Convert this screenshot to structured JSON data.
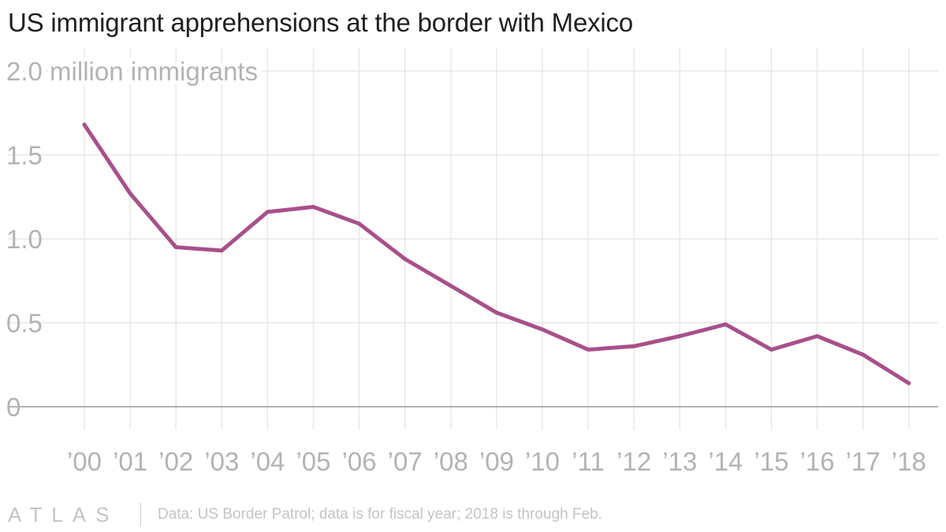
{
  "title": "US immigrant apprehensions at the border with Mexico",
  "footer": {
    "logo": "ATLAS",
    "source": "Data: US Border Patrol; data is for fiscal year; 2018 is through Feb."
  },
  "colors": {
    "line": "#a8508a",
    "grid": "#e8e8e8",
    "axis": "#999999",
    "tick_text": "#b3b3b3"
  },
  "chart_data": {
    "type": "line",
    "title": "US immigrant apprehensions at the border with Mexico",
    "ylabel": "million immigrants",
    "ylim": [
      0,
      2.0
    ],
    "y_ticks": [
      {
        "value": 0,
        "label": "0"
      },
      {
        "value": 0.5,
        "label": "0.5"
      },
      {
        "value": 1.0,
        "label": "1.0"
      },
      {
        "value": 1.5,
        "label": "1.5"
      },
      {
        "value": 2.0,
        "label": "2.0 million immigrants"
      }
    ],
    "categories": [
      "’00",
      "’01",
      "’02",
      "’03",
      "’04",
      "’05",
      "’06",
      "’07",
      "’08",
      "’09",
      "’10",
      "’11",
      "’12",
      "’13",
      "’14",
      "’15",
      "’16",
      "’17",
      "’18"
    ],
    "series": [
      {
        "name": "Apprehensions",
        "values": [
          1.68,
          1.27,
          0.95,
          0.93,
          1.16,
          1.19,
          1.09,
          0.88,
          0.72,
          0.56,
          0.46,
          0.34,
          0.36,
          0.42,
          0.49,
          0.34,
          0.42,
          0.31,
          0.14
        ]
      }
    ],
    "grid": true
  }
}
